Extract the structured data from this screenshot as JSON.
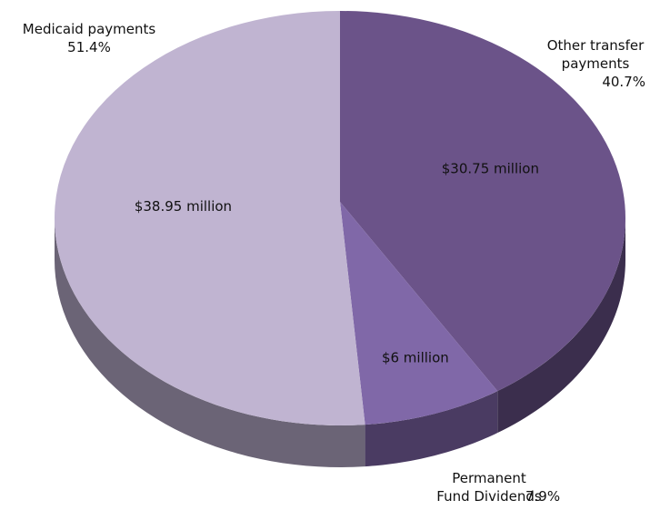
{
  "chart_data": {
    "type": "pie3d",
    "categories": [
      "Other transfer payments",
      "Permanent Fund Dividends",
      "Medicaid payments"
    ],
    "values": [
      40.7,
      7.9,
      51.4
    ],
    "value_labels": [
      "40.7%",
      "7.9%",
      "51.4%"
    ],
    "slice_labels": [
      "$30.75 million",
      "$6 million",
      "$38.95 million"
    ],
    "colors": [
      "#6b5389",
      "#8068a8",
      "#c0b4d1"
    ],
    "side_colors": [
      "#3b2e4d",
      "#4a3b62",
      "#6b6476"
    ]
  }
}
